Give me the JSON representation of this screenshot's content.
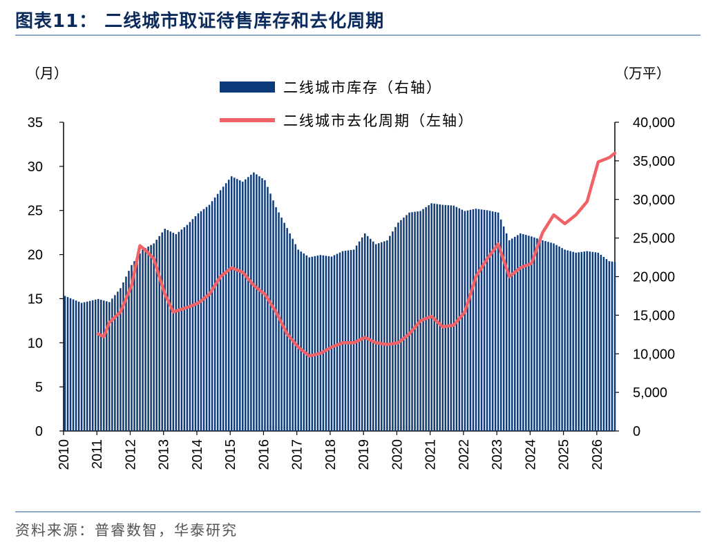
{
  "figure": {
    "title": "图表11：  二线城市取证待售库存和去化周期",
    "source": "资料来源：普睿数智，华泰研究"
  },
  "colors": {
    "bars": "#0d3a7a",
    "line": "#f06266",
    "rule": "#8fa6c4"
  },
  "chart_data": {
    "type": "bar+line",
    "y_left": {
      "unit": "（月）",
      "range": [
        0,
        35
      ],
      "ticks": [
        "0",
        "5",
        "10",
        "15",
        "20",
        "25",
        "30",
        "35"
      ]
    },
    "y_right": {
      "unit": "（万平）",
      "range": [
        0,
        40000
      ],
      "ticks": [
        "0",
        "5,000",
        "10,000",
        "15,000",
        "20,000",
        "25,000",
        "30,000",
        "35,000",
        "40,000"
      ]
    },
    "x_axis": {
      "ticks": [
        "2010",
        "2011",
        "2012",
        "2013",
        "2014",
        "2015",
        "2016",
        "2017",
        "2018",
        "2019",
        "2020",
        "2021",
        "2022",
        "2023",
        "2024",
        "2025",
        "2026"
      ]
    },
    "legend": [
      "二线城市库存（右轴）",
      "二线城市去化周期（左轴）"
    ],
    "series": [
      {
        "name": "二线城市库存（右轴）",
        "type": "bar",
        "axis": "right",
        "points": [
          [
            "2010-01",
            17500
          ],
          [
            "2010-07",
            16600
          ],
          [
            "2011-01",
            17100
          ],
          [
            "2011-05",
            16700
          ],
          [
            "2011-09",
            18500
          ],
          [
            "2012-01",
            21500
          ],
          [
            "2012-05",
            23500
          ],
          [
            "2012-09",
            24300
          ],
          [
            "2013-01",
            26200
          ],
          [
            "2013-05",
            25500
          ],
          [
            "2013-09",
            26700
          ],
          [
            "2014-01",
            28200
          ],
          [
            "2014-05",
            29300
          ],
          [
            "2014-09",
            31200
          ],
          [
            "2015-01",
            33000
          ],
          [
            "2015-05",
            32300
          ],
          [
            "2015-09",
            33500
          ],
          [
            "2016-01",
            32500
          ],
          [
            "2016-05",
            29000
          ],
          [
            "2016-09",
            26300
          ],
          [
            "2017-01",
            23500
          ],
          [
            "2017-05",
            22500
          ],
          [
            "2017-09",
            22800
          ],
          [
            "2018-01",
            22600
          ],
          [
            "2018-05",
            23300
          ],
          [
            "2018-09",
            23500
          ],
          [
            "2019-01",
            25600
          ],
          [
            "2019-05",
            24200
          ],
          [
            "2019-09",
            24700
          ],
          [
            "2020-01",
            27000
          ],
          [
            "2020-05",
            28300
          ],
          [
            "2020-09",
            28500
          ],
          [
            "2021-01",
            29500
          ],
          [
            "2021-05",
            29300
          ],
          [
            "2021-09",
            29200
          ],
          [
            "2022-01",
            28500
          ],
          [
            "2022-05",
            28800
          ],
          [
            "2022-09",
            28600
          ],
          [
            "2023-01",
            28300
          ],
          [
            "2023-05",
            24700
          ],
          [
            "2023-09",
            25600
          ],
          [
            "2024-01",
            25200
          ],
          [
            "2024-05",
            24700
          ],
          [
            "2024-09",
            24300
          ],
          [
            "2025-01",
            23500
          ],
          [
            "2025-05",
            23100
          ],
          [
            "2025-09",
            23300
          ],
          [
            "2026-01",
            23100
          ],
          [
            "2026-05",
            22000
          ],
          [
            "2026-07",
            21900
          ]
        ]
      },
      {
        "name": "二线城市去化周期（左轴）",
        "type": "line",
        "axis": "left",
        "points": [
          [
            "2011-01",
            11.0
          ],
          [
            "2011-03",
            10.7
          ],
          [
            "2011-05",
            12.3
          ],
          [
            "2011-09",
            13.5
          ],
          [
            "2012-01",
            16.5
          ],
          [
            "2012-04",
            21.0
          ],
          [
            "2012-06",
            20.5
          ],
          [
            "2012-09",
            19.5
          ],
          [
            "2013-01",
            15.5
          ],
          [
            "2013-04",
            13.5
          ],
          [
            "2013-09",
            14.0
          ],
          [
            "2014-01",
            14.5
          ],
          [
            "2014-05",
            15.5
          ],
          [
            "2014-09",
            17.5
          ],
          [
            "2015-01",
            18.5
          ],
          [
            "2015-05",
            18.0
          ],
          [
            "2015-09",
            16.5
          ],
          [
            "2016-01",
            15.5
          ],
          [
            "2016-05",
            13.5
          ],
          [
            "2016-09",
            11.0
          ],
          [
            "2017-01",
            9.5
          ],
          [
            "2017-05",
            8.5
          ],
          [
            "2017-09",
            8.8
          ],
          [
            "2018-01",
            9.5
          ],
          [
            "2018-05",
            10.0
          ],
          [
            "2018-09",
            10.0
          ],
          [
            "2019-01",
            10.6
          ],
          [
            "2019-05",
            10.0
          ],
          [
            "2019-09",
            9.8
          ],
          [
            "2020-01",
            10.0
          ],
          [
            "2020-05",
            11.0
          ],
          [
            "2020-09",
            12.5
          ],
          [
            "2021-01",
            13.0
          ],
          [
            "2021-05",
            11.8
          ],
          [
            "2021-09",
            12.0
          ],
          [
            "2022-01",
            13.5
          ],
          [
            "2022-05",
            17.5
          ],
          [
            "2022-09",
            19.5
          ],
          [
            "2023-01",
            21.2
          ],
          [
            "2023-05",
            17.5
          ],
          [
            "2023-09",
            18.5
          ],
          [
            "2024-01",
            19.0
          ],
          [
            "2024-05",
            22.5
          ],
          [
            "2024-09",
            24.5
          ],
          [
            "2025-01",
            23.5
          ],
          [
            "2025-05",
            24.5
          ],
          [
            "2025-09",
            26.0
          ],
          [
            "2026-01",
            30.5
          ],
          [
            "2026-05",
            31.0
          ],
          [
            "2026-07",
            31.5
          ]
        ]
      }
    ]
  }
}
